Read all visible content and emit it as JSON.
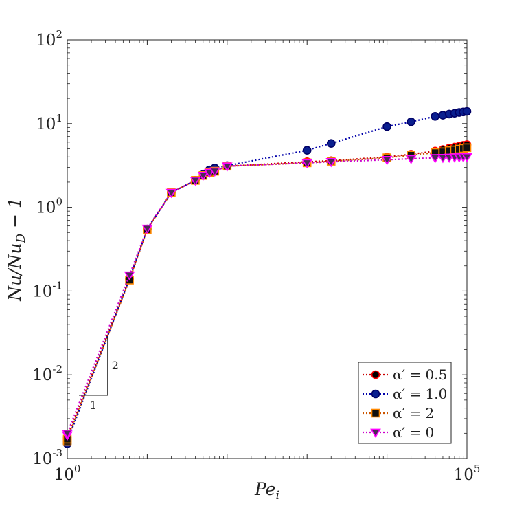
{
  "chart_data": {
    "type": "line",
    "title": "",
    "xlabel": "Pe_i",
    "ylabel": "Nu/Nu_D − 1",
    "xscale": "log",
    "yscale": "log",
    "xlim": [
      1,
      100000
    ],
    "ylim": [
      0.001,
      100
    ],
    "xticks": [
      {
        "value": 1,
        "base": "10",
        "exp": "0"
      },
      {
        "value": 100000,
        "base": "10",
        "exp": "5"
      }
    ],
    "yticks": [
      {
        "value": 0.001,
        "base": "10",
        "exp": "-3"
      },
      {
        "value": 0.01,
        "base": "10",
        "exp": "-2"
      },
      {
        "value": 0.1,
        "base": "10",
        "exp": "-1"
      },
      {
        "value": 1,
        "base": "10",
        "exp": "0"
      },
      {
        "value": 10,
        "base": "10",
        "exp": "1"
      },
      {
        "value": 100,
        "base": "10",
        "exp": "2"
      }
    ],
    "legend_position": "bottom-right",
    "series": [
      {
        "name": "α′ = 0.5",
        "marker": "circle",
        "line_color": "#cc0000",
        "face_color": "#000000",
        "edge_color": "#ff0000",
        "x": [
          1,
          1,
          6,
          10,
          20,
          40,
          50,
          60,
          70,
          100,
          1000,
          2000,
          10000,
          20000,
          40000,
          50000,
          60000,
          70000,
          80000,
          90000,
          100000
        ],
        "y": [
          0.0017,
          0.0018,
          0.14,
          0.55,
          1.5,
          2.1,
          2.4,
          2.7,
          2.75,
          3.1,
          3.5,
          3.6,
          4.0,
          4.3,
          4.7,
          4.9,
          5.1,
          5.25,
          5.4,
          5.5,
          5.6
        ]
      },
      {
        "name": "α′ = 1.0",
        "marker": "circle",
        "line_color": "#0000aa",
        "face_color": "#0a1f8f",
        "edge_color": "#000066",
        "x": [
          1,
          1,
          6,
          10,
          20,
          40,
          50,
          60,
          70,
          100,
          1000,
          2000,
          10000,
          20000,
          40000,
          50000,
          60000,
          70000,
          80000,
          90000,
          100000
        ],
        "y": [
          0.0015,
          0.0016,
          0.14,
          0.55,
          1.5,
          2.1,
          2.5,
          2.8,
          2.95,
          3.15,
          4.8,
          5.8,
          9.2,
          10.5,
          12.2,
          12.6,
          13.0,
          13.3,
          13.6,
          13.8,
          14.0
        ]
      },
      {
        "name": "α′ = 2",
        "marker": "square",
        "line_color": "#cc5500",
        "face_color": "#111111",
        "edge_color": "#ff8800",
        "x": [
          1,
          1,
          6,
          10,
          20,
          40,
          50,
          60,
          70,
          100,
          1000,
          2000,
          10000,
          20000,
          40000,
          50000,
          60000,
          70000,
          80000,
          90000,
          100000
        ],
        "y": [
          0.0016,
          0.0017,
          0.135,
          0.54,
          1.5,
          2.1,
          2.4,
          2.6,
          2.7,
          3.1,
          3.4,
          3.55,
          3.9,
          4.2,
          4.5,
          4.6,
          4.75,
          4.85,
          4.95,
          5.05,
          5.15
        ]
      },
      {
        "name": "α′ = 0",
        "marker": "triangle-down",
        "line_color": "#cc00cc",
        "face_color": "#4b2a55",
        "edge_color": "#ff00ff",
        "x": [
          1,
          1,
          6,
          10,
          20,
          40,
          50,
          60,
          70,
          100,
          1000,
          2000,
          10000,
          20000,
          40000,
          50000,
          60000,
          70000,
          80000,
          90000,
          100000
        ],
        "y": [
          0.0019,
          0.002,
          0.155,
          0.56,
          1.5,
          2.1,
          2.4,
          2.6,
          2.7,
          3.1,
          3.4,
          3.5,
          3.7,
          3.8,
          3.9,
          3.92,
          3.95,
          3.97,
          3.98,
          4.0,
          4.0
        ]
      }
    ],
    "slope_triangle": {
      "run_label": "1",
      "rise_label": "2",
      "x_start": 1.4,
      "x_end": 3.2,
      "y_start": 0.0057,
      "y_end": 0.029
    }
  }
}
